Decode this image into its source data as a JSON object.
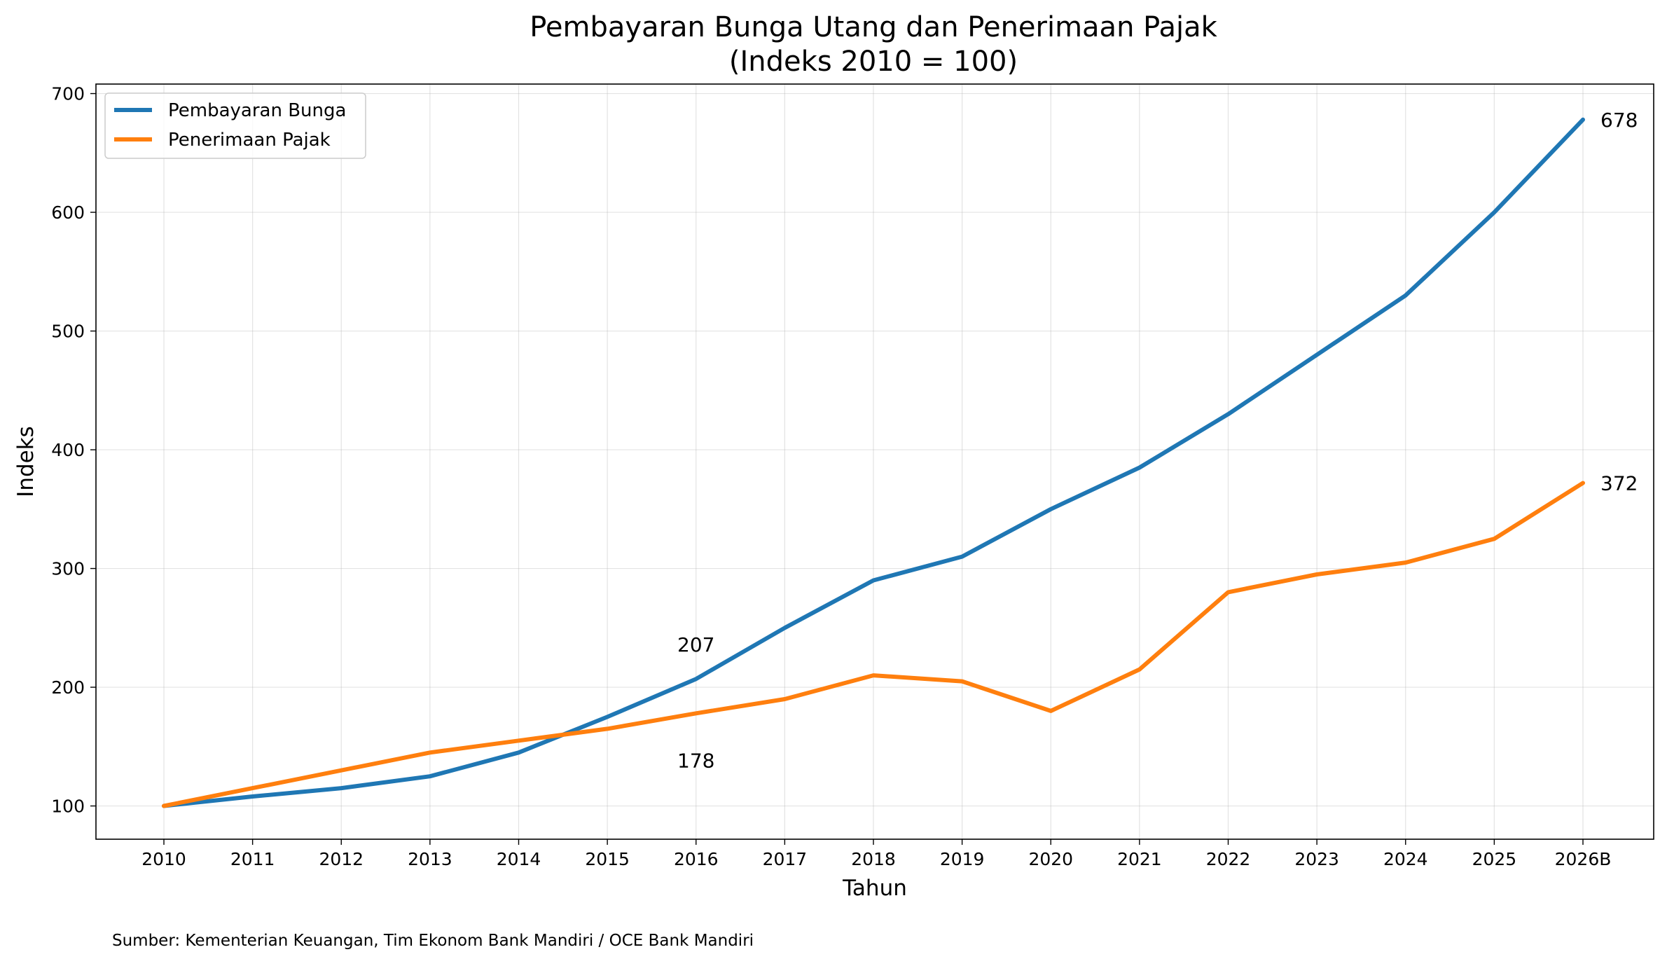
{
  "chart_data": {
    "type": "line",
    "title_line1": "Pembayaran Bunga Utang dan Penerimaan Pajak",
    "title_line2": "(Indeks 2010 = 100)",
    "xlabel": "Tahun",
    "ylabel": "Indeks",
    "categories": [
      "2010",
      "2011",
      "2012",
      "2013",
      "2014",
      "2015",
      "2016",
      "2017",
      "2018",
      "2019",
      "2020",
      "2021",
      "2022",
      "2023",
      "2024",
      "2025",
      "2026B"
    ],
    "ylim": [
      72,
      708
    ],
    "yticks": [
      100,
      200,
      300,
      400,
      500,
      600,
      700
    ],
    "grid": true,
    "legend_position": "top-left",
    "series": [
      {
        "name": "Pembayaran Bunga",
        "color": "#1f77b4",
        "values": [
          100,
          108,
          115,
          125,
          145,
          175,
          207,
          250,
          290,
          310,
          350,
          385,
          430,
          480,
          530,
          600,
          678
        ]
      },
      {
        "name": "Penerimaan Pajak",
        "color": "#ff7f0e",
        "values": [
          100,
          115,
          130,
          145,
          155,
          165,
          178,
          190,
          210,
          205,
          180,
          215,
          280,
          295,
          305,
          325,
          372
        ]
      }
    ],
    "annotations": [
      {
        "text": "207",
        "x": "2016",
        "y": 207,
        "series": 0,
        "placement": "above"
      },
      {
        "text": "178",
        "x": "2016",
        "y": 178,
        "series": 1,
        "placement": "below"
      },
      {
        "text": "678",
        "x": "2026B",
        "y": 678,
        "series": 0,
        "placement": "right"
      },
      {
        "text": "372",
        "x": "2026B",
        "y": 372,
        "series": 1,
        "placement": "right"
      }
    ]
  },
  "source_note": "Sumber: Kementerian Keuangan, Tim Ekonom Bank Mandiri / OCE Bank Mandiri"
}
